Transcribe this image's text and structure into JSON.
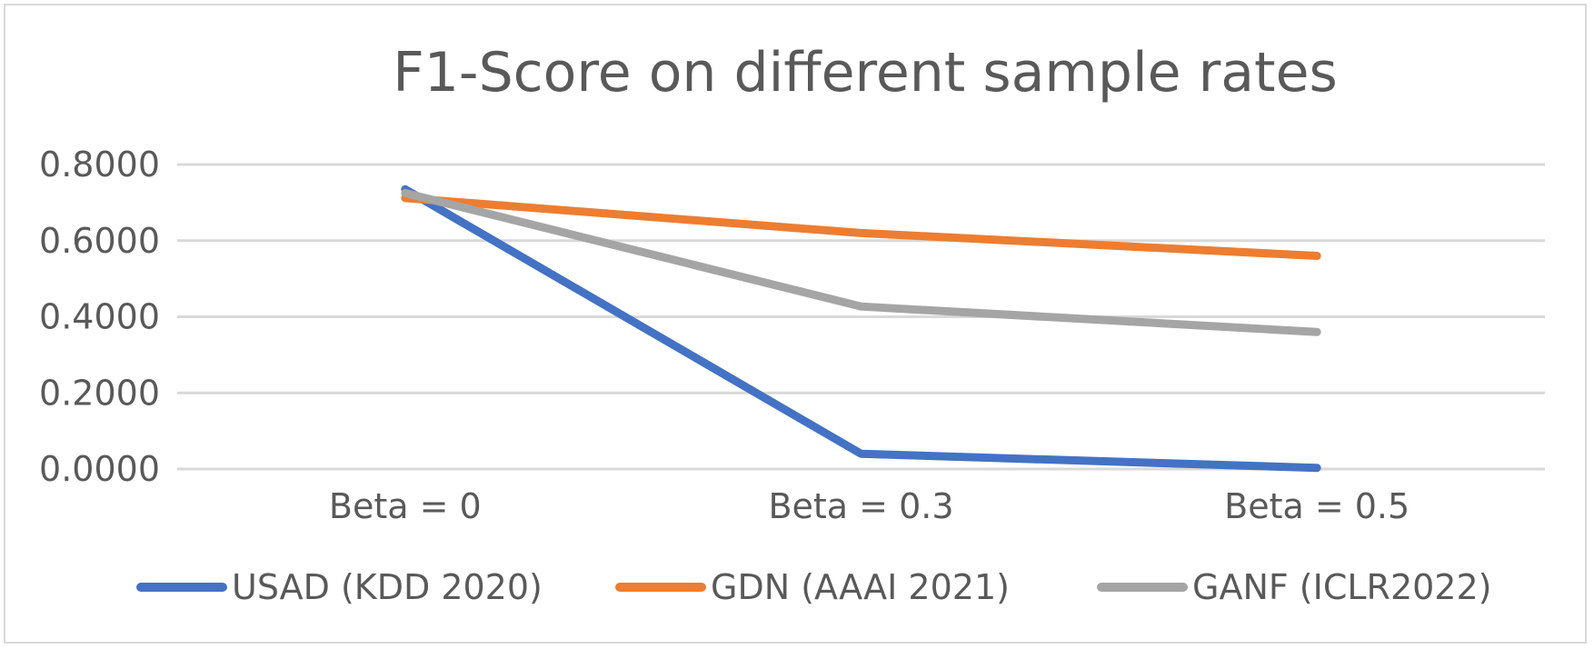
{
  "chart_data": {
    "type": "line",
    "title": "F1-Score on different sample rates",
    "categories": [
      "Beta = 0",
      "Beta = 0.3",
      "Beta = 0.5"
    ],
    "ylim": [
      0,
      0.8
    ],
    "yticks": [
      "0.0000",
      "0.2000",
      "0.4000",
      "0.6000",
      "0.8000"
    ],
    "grid": true,
    "legend_position": "bottom",
    "series": [
      {
        "name": "USAD (KDD 2020)",
        "color": "#4472c4",
        "values": [
          0.735,
          0.04,
          0.003
        ]
      },
      {
        "name": "GDN  (AAAI 2021)",
        "color": "#ed7d31",
        "values": [
          0.712,
          0.62,
          0.56
        ]
      },
      {
        "name": "GANF (ICLR2022)",
        "color": "#a5a5a5",
        "values": [
          0.725,
          0.427,
          0.36
        ]
      }
    ]
  }
}
